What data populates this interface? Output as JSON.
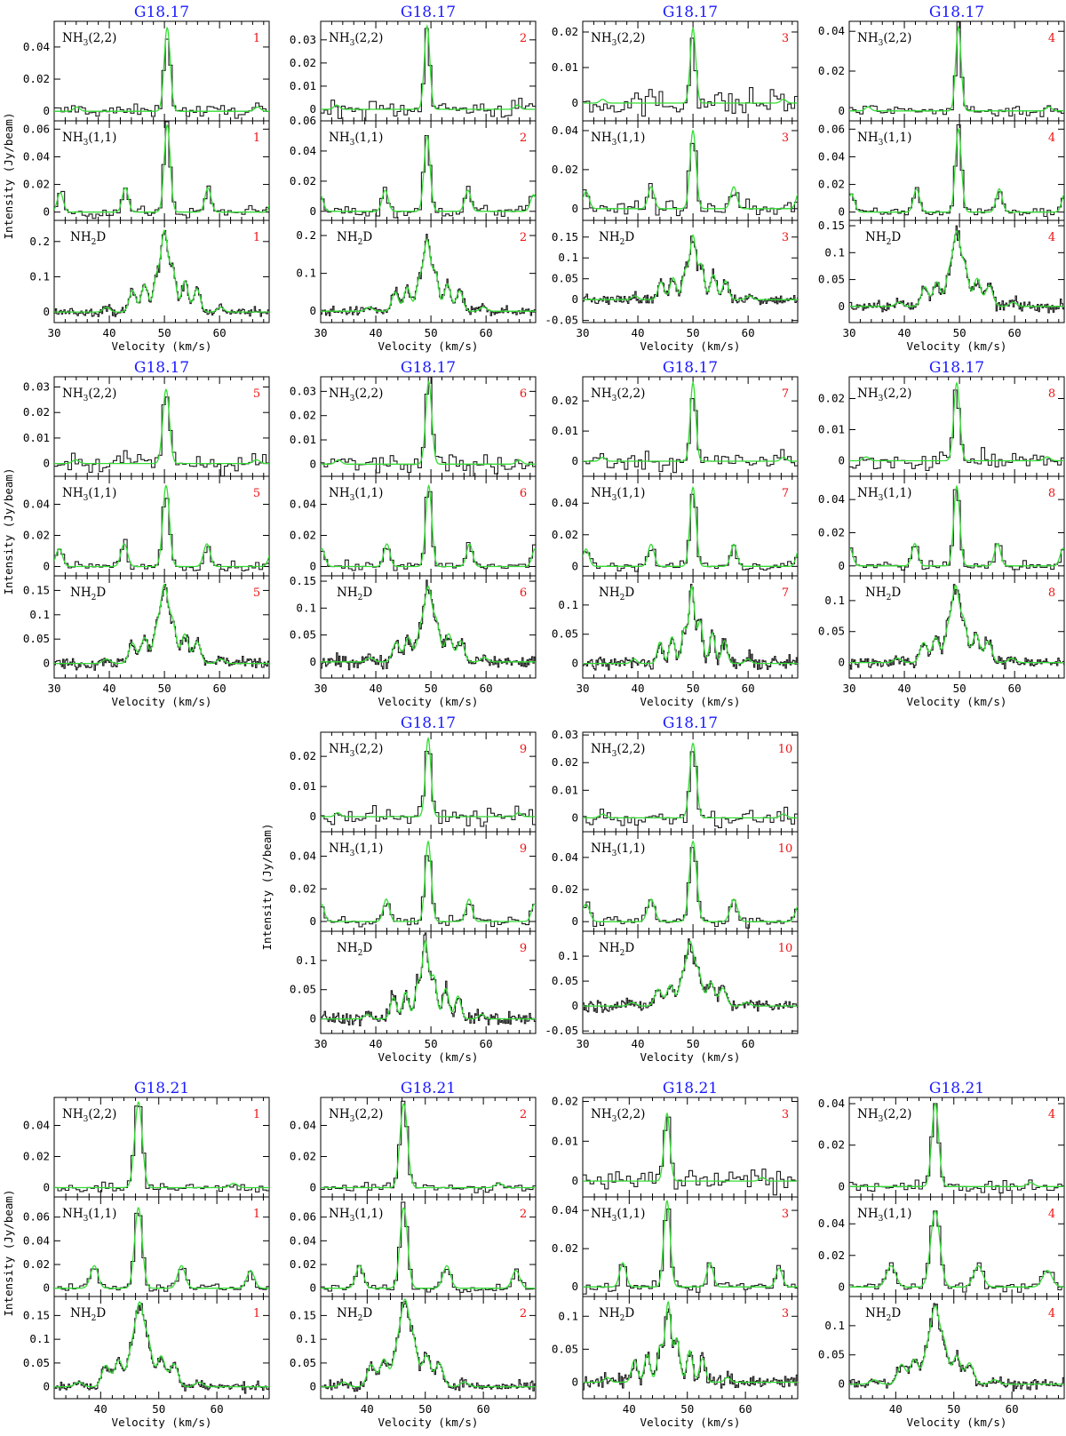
{
  "colors": {
    "observed": "#1a1a1a",
    "fit": "#33dd33",
    "title": "#1a1aff",
    "position": "#ee1111"
  },
  "chart_data": {
    "type": "line",
    "xlabel": "Velocity (km/s)",
    "ylabel": "Intensity (Jy/beam)",
    "series": [
      {
        "name": "observed"
      },
      {
        "name": "fit"
      }
    ],
    "transitions": [
      {
        "id": "nh3_22",
        "base": "NH",
        "sub": "3",
        "tail": "(2,2)"
      },
      {
        "id": "nh3_11",
        "base": "NH",
        "sub": "3",
        "tail": "(1,1)"
      },
      {
        "id": "nh2d",
        "base": "NH",
        "sub": "2",
        "tail": "D"
      }
    ],
    "panels": [
      {
        "source": "G18.17",
        "position": "1",
        "xlim": [
          30,
          69
        ],
        "xticks": [
          30,
          40,
          50,
          60
        ],
        "rows": [
          {
            "ylim": [
              -0.006,
              0.056
            ],
            "yticks": [
              0,
              0.02,
              0.04
            ],
            "velocity": 50.5,
            "width": 0.55,
            "peak": 0.052,
            "noise": 0.004
          },
          {
            "ylim": [
              -0.006,
              0.066
            ],
            "yticks": [
              0,
              0.02,
              0.04,
              0.06
            ],
            "velocity": 50.5,
            "width": 0.55,
            "peak": 0.063,
            "noise": 0.004
          },
          {
            "ylim": [
              -0.03,
              0.26
            ],
            "yticks": [
              0,
              0.1,
              0.2
            ],
            "velocity": 50.0,
            "width": 0.6,
            "peak": 0.22,
            "noise": 0.012
          }
        ]
      },
      {
        "source": "G18.17",
        "position": "2",
        "xlim": [
          30,
          69
        ],
        "xticks": [
          30,
          40,
          50,
          60
        ],
        "rows": [
          {
            "ylim": [
              -0.005,
              0.038
            ],
            "yticks": [
              0,
              0.01,
              0.02,
              0.03
            ],
            "velocity": 49.3,
            "width": 0.5,
            "peak": 0.036,
            "noise": 0.004
          },
          {
            "ylim": [
              -0.006,
              0.06
            ],
            "yticks": [
              0,
              0.02,
              0.04,
              0.06
            ],
            "velocity": 49.3,
            "width": 0.55,
            "peak": 0.05,
            "noise": 0.004
          },
          {
            "ylim": [
              -0.03,
              0.24
            ],
            "yticks": [
              0,
              0.1,
              0.2
            ],
            "velocity": 49.3,
            "width": 0.6,
            "peak": 0.18,
            "noise": 0.012
          }
        ]
      },
      {
        "source": "G18.17",
        "position": "3",
        "xlim": [
          30,
          69
        ],
        "xticks": [
          30,
          40,
          50,
          60
        ],
        "rows": [
          {
            "ylim": [
              -0.005,
              0.023
            ],
            "yticks": [
              0,
              0.01,
              0.02
            ],
            "velocity": 50.0,
            "width": 0.5,
            "peak": 0.021,
            "noise": 0.004
          },
          {
            "ylim": [
              -0.006,
              0.045
            ],
            "yticks": [
              0,
              0.02,
              0.04
            ],
            "velocity": 50.0,
            "width": 0.55,
            "peak": 0.04,
            "noise": 0.004
          },
          {
            "ylim": [
              -0.055,
              0.19
            ],
            "yticks": [
              -0.05,
              0,
              0.05,
              0.1,
              0.15
            ],
            "velocity": 50.0,
            "width": 0.55,
            "peak": 0.15,
            "noise": 0.012
          }
        ]
      },
      {
        "source": "G18.17",
        "position": "4",
        "xlim": [
          30,
          69
        ],
        "xticks": [
          30,
          40,
          50,
          60
        ],
        "rows": [
          {
            "ylim": [
              -0.005,
              0.045
            ],
            "yticks": [
              0,
              0.02,
              0.04
            ],
            "velocity": 49.8,
            "width": 0.5,
            "peak": 0.042,
            "noise": 0.003
          },
          {
            "ylim": [
              -0.006,
              0.066
            ],
            "yticks": [
              0,
              0.02,
              0.04,
              0.06
            ],
            "velocity": 49.8,
            "width": 0.55,
            "peak": 0.06,
            "noise": 0.003
          },
          {
            "ylim": [
              -0.03,
              0.16
            ],
            "yticks": [
              0,
              0.05,
              0.1,
              0.15
            ],
            "velocity": 49.5,
            "width": 0.65,
            "peak": 0.13,
            "noise": 0.01
          }
        ]
      },
      {
        "source": "G18.17",
        "position": "5",
        "xlim": [
          30,
          69
        ],
        "xticks": [
          30,
          40,
          50,
          60
        ],
        "rows": [
          {
            "ylim": [
              -0.005,
              0.034
            ],
            "yticks": [
              0,
              0.01,
              0.02,
              0.03
            ],
            "velocity": 50.3,
            "width": 0.6,
            "peak": 0.029,
            "noise": 0.004
          },
          {
            "ylim": [
              -0.006,
              0.058
            ],
            "yticks": [
              0,
              0.02,
              0.04
            ],
            "velocity": 50.3,
            "width": 0.6,
            "peak": 0.052,
            "noise": 0.003
          },
          {
            "ylim": [
              -0.03,
              0.18
            ],
            "yticks": [
              0,
              0.05,
              0.1,
              0.15
            ],
            "velocity": 50.0,
            "width": 0.65,
            "peak": 0.15,
            "noise": 0.012
          }
        ]
      },
      {
        "source": "G18.17",
        "position": "6",
        "xlim": [
          30,
          69
        ],
        "xticks": [
          30,
          40,
          50,
          60
        ],
        "rows": [
          {
            "ylim": [
              -0.005,
              0.036
            ],
            "yticks": [
              0,
              0.01,
              0.02,
              0.03
            ],
            "velocity": 49.6,
            "width": 0.55,
            "peak": 0.034,
            "noise": 0.004
          },
          {
            "ylim": [
              -0.006,
              0.058
            ],
            "yticks": [
              0,
              0.02,
              0.04
            ],
            "velocity": 49.6,
            "width": 0.55,
            "peak": 0.052,
            "noise": 0.003
          },
          {
            "ylim": [
              -0.03,
              0.16
            ],
            "yticks": [
              0,
              0.05,
              0.1,
              0.15
            ],
            "velocity": 49.5,
            "width": 0.65,
            "peak": 0.13,
            "noise": 0.012
          }
        ]
      },
      {
        "source": "G18.17",
        "position": "7",
        "xlim": [
          30,
          69
        ],
        "xticks": [
          30,
          40,
          50,
          60
        ],
        "rows": [
          {
            "ylim": [
              -0.005,
              0.028
            ],
            "yticks": [
              0,
              0.01,
              0.02
            ],
            "velocity": 50.0,
            "width": 0.5,
            "peak": 0.026,
            "noise": 0.003
          },
          {
            "ylim": [
              -0.006,
              0.057
            ],
            "yticks": [
              0,
              0.02,
              0.04
            ],
            "velocity": 50.0,
            "width": 0.55,
            "peak": 0.05,
            "noise": 0.003
          },
          {
            "ylim": [
              -0.025,
              0.15
            ],
            "yticks": [
              0,
              0.05,
              0.1
            ],
            "velocity": 49.8,
            "width": 0.5,
            "peak": 0.13,
            "noise": 0.012
          }
        ]
      },
      {
        "source": "G18.17",
        "position": "8",
        "xlim": [
          30,
          69
        ],
        "xticks": [
          30,
          40,
          50,
          60
        ],
        "rows": [
          {
            "ylim": [
              -0.005,
              0.027
            ],
            "yticks": [
              0,
              0.01,
              0.02
            ],
            "velocity": 49.5,
            "width": 0.55,
            "peak": 0.025,
            "noise": 0.003
          },
          {
            "ylim": [
              -0.006,
              0.054
            ],
            "yticks": [
              0,
              0.02,
              0.04
            ],
            "velocity": 49.5,
            "width": 0.55,
            "peak": 0.048,
            "noise": 0.003
          },
          {
            "ylim": [
              -0.025,
              0.14
            ],
            "yticks": [
              0,
              0.05,
              0.1
            ],
            "velocity": 49.3,
            "width": 0.65,
            "peak": 0.115,
            "noise": 0.01
          }
        ]
      },
      {
        "source": "G18.17",
        "position": "9",
        "xlim": [
          30,
          69
        ],
        "xticks": [
          30,
          40,
          50,
          60
        ],
        "rows": [
          {
            "ylim": [
              -0.005,
              0.028
            ],
            "yticks": [
              0,
              0.01,
              0.02
            ],
            "velocity": 49.5,
            "width": 0.5,
            "peak": 0.026,
            "noise": 0.003
          },
          {
            "ylim": [
              -0.006,
              0.055
            ],
            "yticks": [
              0,
              0.02,
              0.04
            ],
            "velocity": 49.5,
            "width": 0.55,
            "peak": 0.049,
            "noise": 0.003
          },
          {
            "ylim": [
              -0.025,
              0.15
            ],
            "yticks": [
              0,
              0.05,
              0.1
            ],
            "velocity": 49.0,
            "width": 0.55,
            "peak": 0.13,
            "noise": 0.012
          }
        ]
      },
      {
        "source": "G18.17",
        "position": "10",
        "xlim": [
          30,
          69
        ],
        "xticks": [
          30,
          40,
          50,
          60
        ],
        "rows": [
          {
            "ylim": [
              -0.005,
              0.031
            ],
            "yticks": [
              0,
              0.01,
              0.02,
              0.03
            ],
            "velocity": 50.0,
            "width": 0.6,
            "peak": 0.027,
            "noise": 0.003
          },
          {
            "ylim": [
              -0.006,
              0.056
            ],
            "yticks": [
              0,
              0.02,
              0.04
            ],
            "velocity": 50.0,
            "width": 0.65,
            "peak": 0.05,
            "noise": 0.003
          },
          {
            "ylim": [
              -0.055,
              0.15
            ],
            "yticks": [
              -0.05,
              0,
              0.05,
              0.1
            ],
            "velocity": 49.5,
            "width": 0.65,
            "peak": 0.12,
            "noise": 0.012
          }
        ]
      },
      {
        "source": "G18.21",
        "position": "1",
        "xlim": [
          32,
          69
        ],
        "xticks": [
          40,
          50,
          60
        ],
        "rows": [
          {
            "ylim": [
              -0.006,
              0.058
            ],
            "yticks": [
              0,
              0.02,
              0.04
            ],
            "velocity": 46.5,
            "width": 0.65,
            "peak": 0.055,
            "noise": 0.003
          },
          {
            "ylim": [
              -0.007,
              0.077
            ],
            "yticks": [
              0,
              0.02,
              0.04,
              0.06
            ],
            "velocity": 46.5,
            "width": 0.65,
            "peak": 0.068,
            "noise": 0.003
          },
          {
            "ylim": [
              -0.025,
              0.19
            ],
            "yticks": [
              0,
              0.05,
              0.1,
              0.15
            ],
            "velocity": 46.7,
            "width": 0.7,
            "peak": 0.16,
            "noise": 0.01
          }
        ]
      },
      {
        "source": "G18.21",
        "position": "2",
        "xlim": [
          32,
          69
        ],
        "xticks": [
          40,
          50,
          60
        ],
        "rows": [
          {
            "ylim": [
              -0.006,
              0.058
            ],
            "yticks": [
              0,
              0.02,
              0.04
            ],
            "velocity": 46.3,
            "width": 0.65,
            "peak": 0.054,
            "noise": 0.003
          },
          {
            "ylim": [
              -0.007,
              0.077
            ],
            "yticks": [
              0,
              0.02,
              0.04,
              0.06
            ],
            "velocity": 46.3,
            "width": 0.65,
            "peak": 0.068,
            "noise": 0.003
          },
          {
            "ylim": [
              -0.025,
              0.19
            ],
            "yticks": [
              0,
              0.05,
              0.1,
              0.15
            ],
            "velocity": 46.5,
            "width": 0.7,
            "peak": 0.165,
            "noise": 0.01
          }
        ]
      },
      {
        "source": "G18.21",
        "position": "3",
        "xlim": [
          32,
          69
        ],
        "xticks": [
          40,
          50,
          60
        ],
        "rows": [
          {
            "ylim": [
              -0.004,
              0.021
            ],
            "yticks": [
              0,
              0.01,
              0.02
            ],
            "velocity": 46.5,
            "width": 0.5,
            "peak": 0.017,
            "noise": 0.003
          },
          {
            "ylim": [
              -0.005,
              0.047
            ],
            "yticks": [
              0,
              0.02,
              0.04
            ],
            "velocity": 46.5,
            "width": 0.55,
            "peak": 0.045,
            "noise": 0.003
          },
          {
            "ylim": [
              -0.025,
              0.13
            ],
            "yticks": [
              0,
              0.05,
              0.1
            ],
            "velocity": 46.7,
            "width": 0.5,
            "peak": 0.12,
            "noise": 0.012
          }
        ]
      },
      {
        "source": "G18.21",
        "position": "4",
        "xlim": [
          32,
          69
        ],
        "xticks": [
          40,
          50,
          60
        ],
        "rows": [
          {
            "ylim": [
              -0.005,
              0.043
            ],
            "yticks": [
              0,
              0.02,
              0.04
            ],
            "velocity": 46.8,
            "width": 0.6,
            "peak": 0.04,
            "noise": 0.003
          },
          {
            "ylim": [
              -0.006,
              0.057
            ],
            "yticks": [
              0,
              0.02,
              0.04
            ],
            "velocity": 46.8,
            "width": 0.8,
            "peak": 0.048,
            "noise": 0.003
          },
          {
            "ylim": [
              -0.025,
              0.15
            ],
            "yticks": [
              0,
              0.05,
              0.1
            ],
            "velocity": 46.8,
            "width": 0.7,
            "peak": 0.12,
            "noise": 0.01
          }
        ]
      }
    ]
  }
}
